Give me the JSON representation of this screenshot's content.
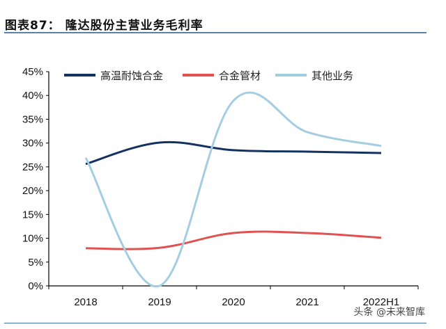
{
  "header": {
    "title": "图表87：  隆达股份主营业务毛利率"
  },
  "watermark": "头条 @未来智库",
  "chart_data": {
    "type": "line",
    "title": "图表87：  隆达股份主营业务毛利率",
    "categories": [
      "2018",
      "2019",
      "2020",
      "2021",
      "2022H1"
    ],
    "ylim": [
      0,
      45
    ],
    "yticks": [
      "0%",
      "5%",
      "10%",
      "15%",
      "20%",
      "25%",
      "30%",
      "35%",
      "40%",
      "45%"
    ],
    "grid": false,
    "legend_position": "top",
    "series": [
      {
        "name": "高温耐蚀合金",
        "color": "#14325f",
        "values": [
          25.6,
          30.1,
          28.5,
          28.2,
          27.9
        ]
      },
      {
        "name": "合金管材",
        "color": "#e05252",
        "values": [
          7.9,
          8.0,
          11.1,
          11.1,
          10.1
        ]
      },
      {
        "name": "其他业务",
        "color": "#a3cde0",
        "values": [
          26.9,
          0.0,
          38.9,
          32.3,
          29.4
        ]
      }
    ]
  }
}
